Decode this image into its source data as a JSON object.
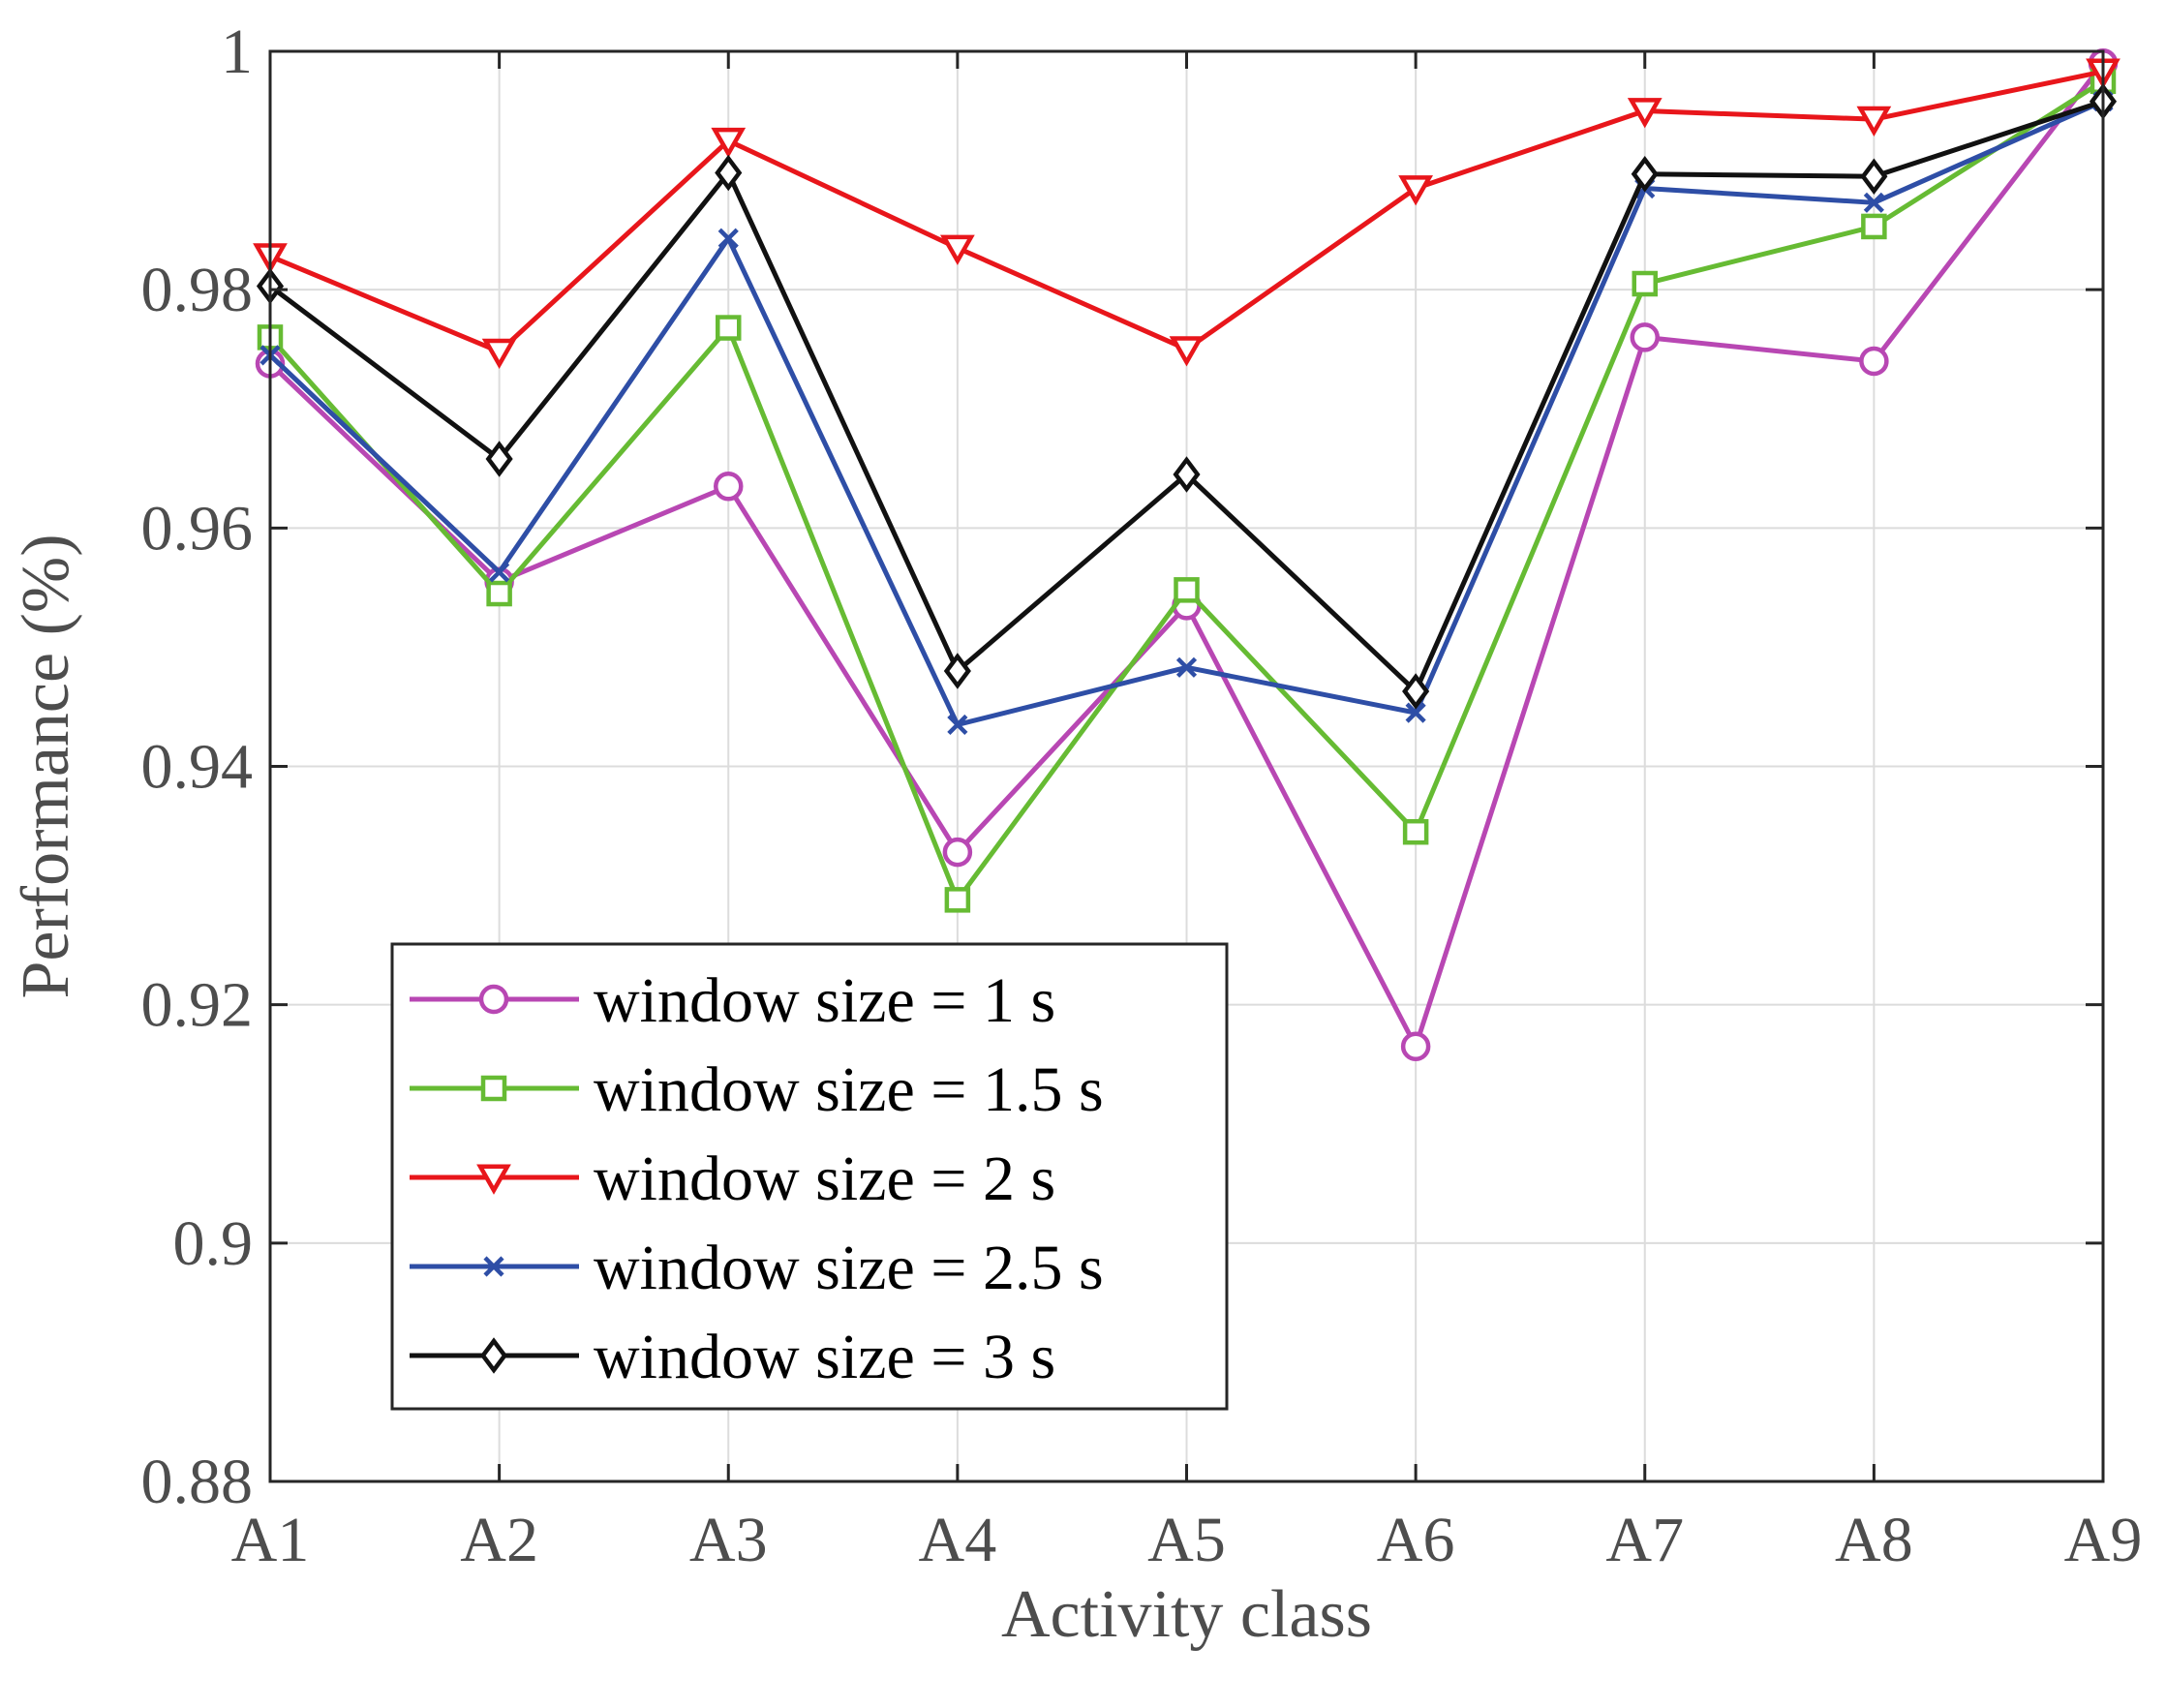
{
  "chart_data": {
    "type": "line",
    "xlabel": "Activity class",
    "ylabel": "Performance (%)",
    "categories": [
      "A1",
      "A2",
      "A3",
      "A4",
      "A5",
      "A6",
      "A7",
      "A8",
      "A9"
    ],
    "ylim": [
      0.88,
      1.0
    ],
    "yticks": [
      "0.88",
      "0.9",
      "0.92",
      "0.94",
      "0.96",
      "0.98",
      "1"
    ],
    "grid": true,
    "legend_position": "bottom-left",
    "series": [
      {
        "name": "window size = 1 s",
        "color": "#b847b3",
        "marker": "circle",
        "values": [
          0.9738,
          0.9555,
          0.9635,
          0.9328,
          0.9535,
          0.9165,
          0.976,
          0.974,
          0.999
        ]
      },
      {
        "name": "window size = 1.5 s",
        "color": "#66bb33",
        "marker": "square",
        "values": [
          0.976,
          0.9545,
          0.9768,
          0.9288,
          0.9548,
          0.9345,
          0.9805,
          0.9853,
          0.9975
        ]
      },
      {
        "name": "window size = 2 s",
        "color": "#e8161b",
        "marker": "triangle-down",
        "values": [
          0.9828,
          0.9748,
          0.9925,
          0.9835,
          0.975,
          0.9885,
          0.995,
          0.9943,
          0.9983
        ]
      },
      {
        "name": "window size = 2.5 s",
        "color": "#2e4ea6",
        "marker": "x",
        "values": [
          0.9745,
          0.9563,
          0.9843,
          0.9435,
          0.9483,
          0.9445,
          0.9885,
          0.9873,
          0.9958
        ]
      },
      {
        "name": "window size = 3 s",
        "color": "#111111",
        "marker": "diamond",
        "values": [
          0.9803,
          0.9658,
          0.9898,
          0.948,
          0.9645,
          0.9463,
          0.9897,
          0.9895,
          0.9958
        ]
      }
    ]
  }
}
